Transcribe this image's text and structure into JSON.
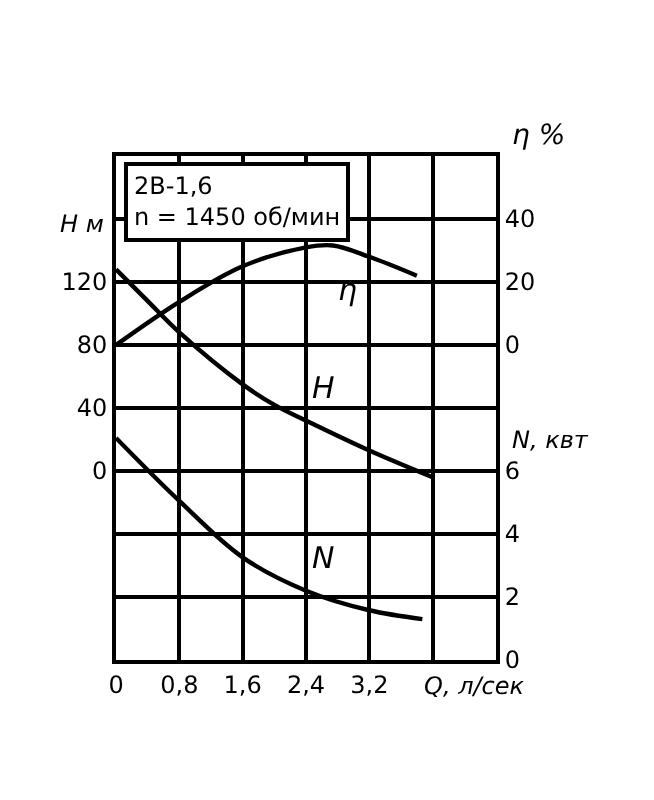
{
  "chart_data": {
    "type": "line",
    "title": "2В-1,6",
    "subtitle": "n = 1450 об/мин",
    "xlabel": "Q, л/сек",
    "ylabel": "H м",
    "y2label": "η %",
    "y3label": "N, квт",
    "xlim": [
      0,
      4.8
    ],
    "xticks": [
      0,
      {
        "value": 0.8,
        "label": "0,8"
      },
      {
        "value": 1.6,
        "label": "1,6"
      },
      {
        "value": 2.4,
        "label": "2,4"
      },
      {
        "value": 3.2,
        "label": "3,2"
      },
      {
        "value": 4.0,
        "label": null
      }
    ],
    "ylim": [
      -120,
      200
    ],
    "yticks": [
      0,
      40,
      80,
      120
    ],
    "y2lim": [
      -100,
      60
    ],
    "y2ticks": [
      0,
      20,
      40
    ],
    "y3lim": [
      0,
      16
    ],
    "y3ticks": [
      0,
      2,
      4,
      6
    ],
    "grid": true,
    "legend": false,
    "marker": "none",
    "line_style": "solid",
    "series": [
      {
        "name": "H",
        "color": "#000000",
        "axis": "y",
        "x": [
          0,
          0.38,
          0.8,
          1.6,
          2.0,
          2.4,
          3.2,
          4.0
        ],
        "values": [
          128,
          109,
          88,
          55,
          42,
          32,
          13,
          -4
        ]
      },
      {
        "name": "η",
        "color": "#000000",
        "axis": "y2",
        "x": [
          0,
          0.8,
          1.6,
          2.4,
          2.74,
          3.2,
          3.8
        ],
        "values": [
          0,
          13.7,
          25,
          31,
          31.6,
          28,
          22
        ]
      },
      {
        "name": "N",
        "color": "#000000",
        "axis": "y3",
        "x": [
          0,
          0.8,
          1.6,
          2.4,
          3.2,
          3.87
        ],
        "values": [
          7.05,
          5.05,
          3.26,
          2.2,
          1.58,
          1.3
        ]
      }
    ]
  }
}
